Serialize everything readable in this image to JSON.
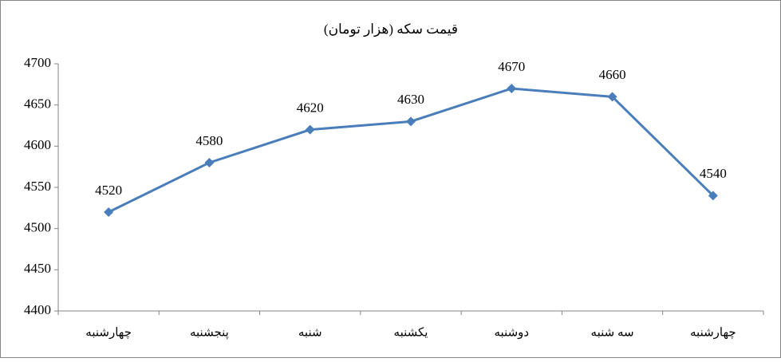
{
  "chart_data": {
    "type": "line",
    "title": "قیمت سکه (هزار تومان)",
    "categories": [
      "چهارشنبه",
      "پنجشنبه",
      "شنبه",
      "یکشنبه",
      "دوشنبه",
      "سه شنبه",
      "چهارشنبه"
    ],
    "values": [
      4520,
      4580,
      4620,
      4630,
      4670,
      4660,
      4540
    ],
    "color": "#4a7ebb",
    "ylim": [
      4400,
      4700
    ],
    "yticks": [
      4400,
      4450,
      4500,
      4550,
      4600,
      4650,
      4700
    ]
  }
}
